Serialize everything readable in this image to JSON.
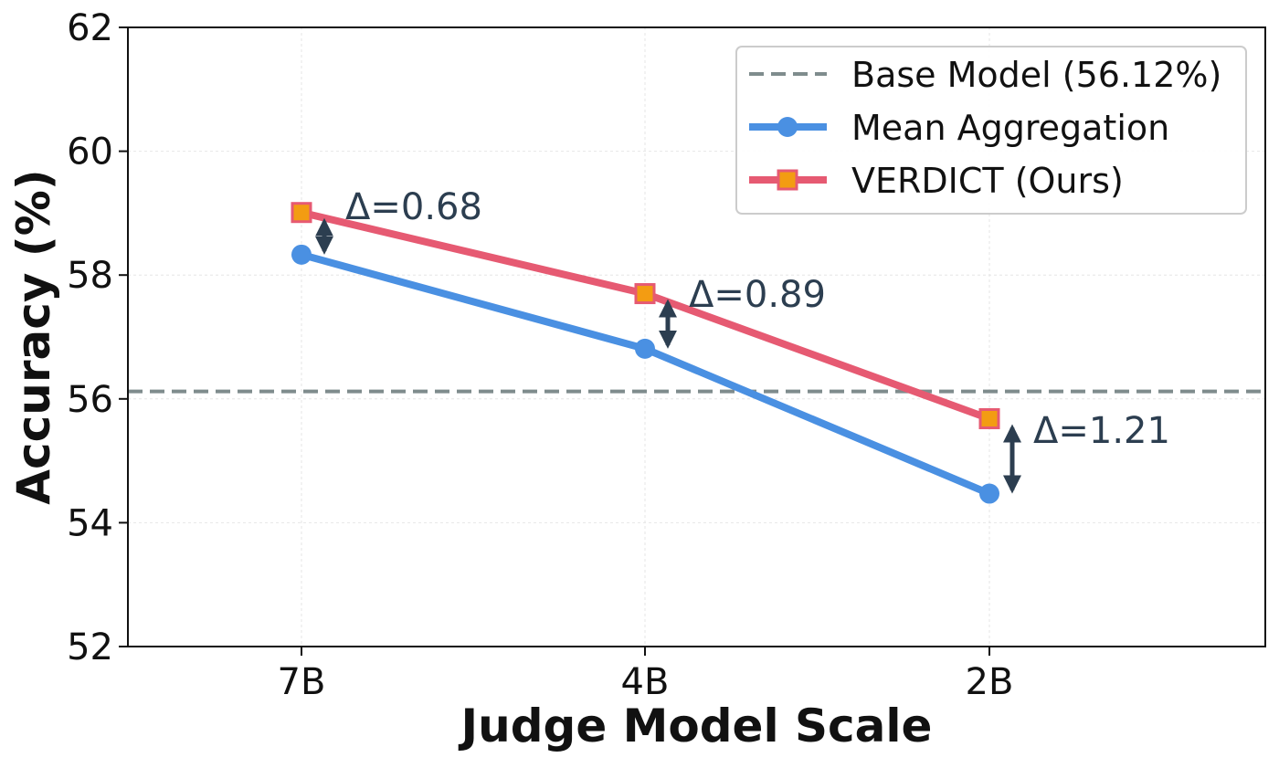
{
  "chart_data": {
    "type": "line",
    "xlabel": "Judge Model Scale",
    "ylabel": "Accuracy (%)",
    "categories": [
      "7B",
      "4B",
      "2B"
    ],
    "ylim": [
      52,
      62
    ],
    "yticks": [
      52,
      54,
      56,
      58,
      60,
      62
    ],
    "grid": true,
    "legend_position": "top-right",
    "baseline": {
      "label": "Base Model (56.12%)",
      "value": 56.12,
      "color": "#7f8c8d",
      "style": "dashed"
    },
    "series": [
      {
        "name": "Mean Aggregation",
        "values": [
          58.33,
          56.81,
          54.47
        ],
        "color": "#4a90e2",
        "marker": "circle"
      },
      {
        "name": "VERDICT (Ours)",
        "values": [
          59.01,
          57.7,
          55.68
        ],
        "color": "#e65a72",
        "marker": "square",
        "marker_fill": "#f39c12"
      }
    ],
    "annotations": [
      {
        "category": "7B",
        "text": "Δ=0.68"
      },
      {
        "category": "4B",
        "text": "Δ=0.89"
      },
      {
        "category": "2B",
        "text": "Δ=1.21"
      }
    ],
    "annotation_color": "#2c3e50"
  }
}
